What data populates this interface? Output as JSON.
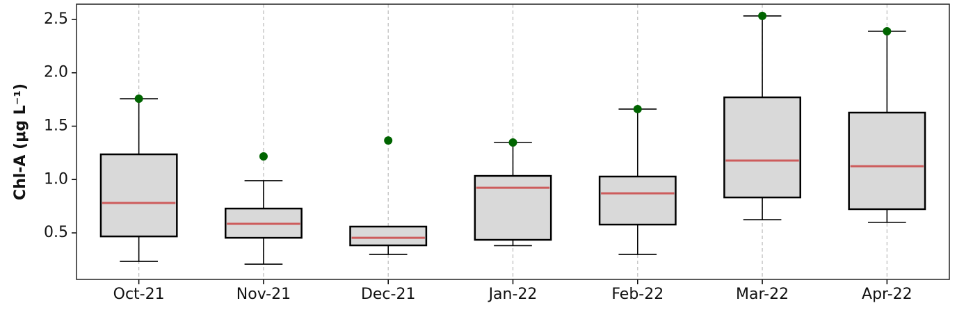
{
  "chart_data": {
    "type": "box",
    "y_label": "Chl-A (μg L⁻¹)",
    "categories": [
      "Oct-21",
      "Nov-21",
      "Dec-21",
      "Jan-22",
      "Feb-22",
      "Mar-22",
      "Apr-22"
    ],
    "boxes": [
      {
        "low": 0.233,
        "q1": 0.467,
        "median": 0.78,
        "q3": 1.236,
        "high": 1.757
      },
      {
        "low": 0.207,
        "q1": 0.454,
        "median": 0.585,
        "q3": 0.728,
        "high": 0.989
      },
      {
        "low": 0.298,
        "q1": 0.383,
        "median": 0.454,
        "q3": 0.559,
        "high": 0.559
      },
      {
        "low": 0.38,
        "q1": 0.435,
        "median": 0.923,
        "q3": 1.034,
        "high": 1.347
      },
      {
        "low": 0.298,
        "q1": 0.578,
        "median": 0.871,
        "q3": 1.028,
        "high": 1.66
      },
      {
        "low": 0.624,
        "q1": 0.832,
        "median": 1.178,
        "q3": 1.77,
        "high": 2.533
      },
      {
        "low": 0.598,
        "q1": 0.722,
        "median": 1.125,
        "q3": 1.627,
        "high": 2.389
      }
    ],
    "outliers": [
      1.757,
      1.217,
      1.366,
      1.347,
      1.66,
      2.533,
      2.389
    ],
    "box_color": "#d9d9d9",
    "median_color": "#cd5c5c",
    "outlier_color": "#006400",
    "ylim": [
      0.064,
      2.643
    ],
    "yticks": [
      0.5,
      {
        "value": 1,
        "label": "1.0"
      },
      1.5,
      {
        "value": 2,
        "label": "2.0"
      },
      2.5
    ],
    "grid": "x"
  }
}
